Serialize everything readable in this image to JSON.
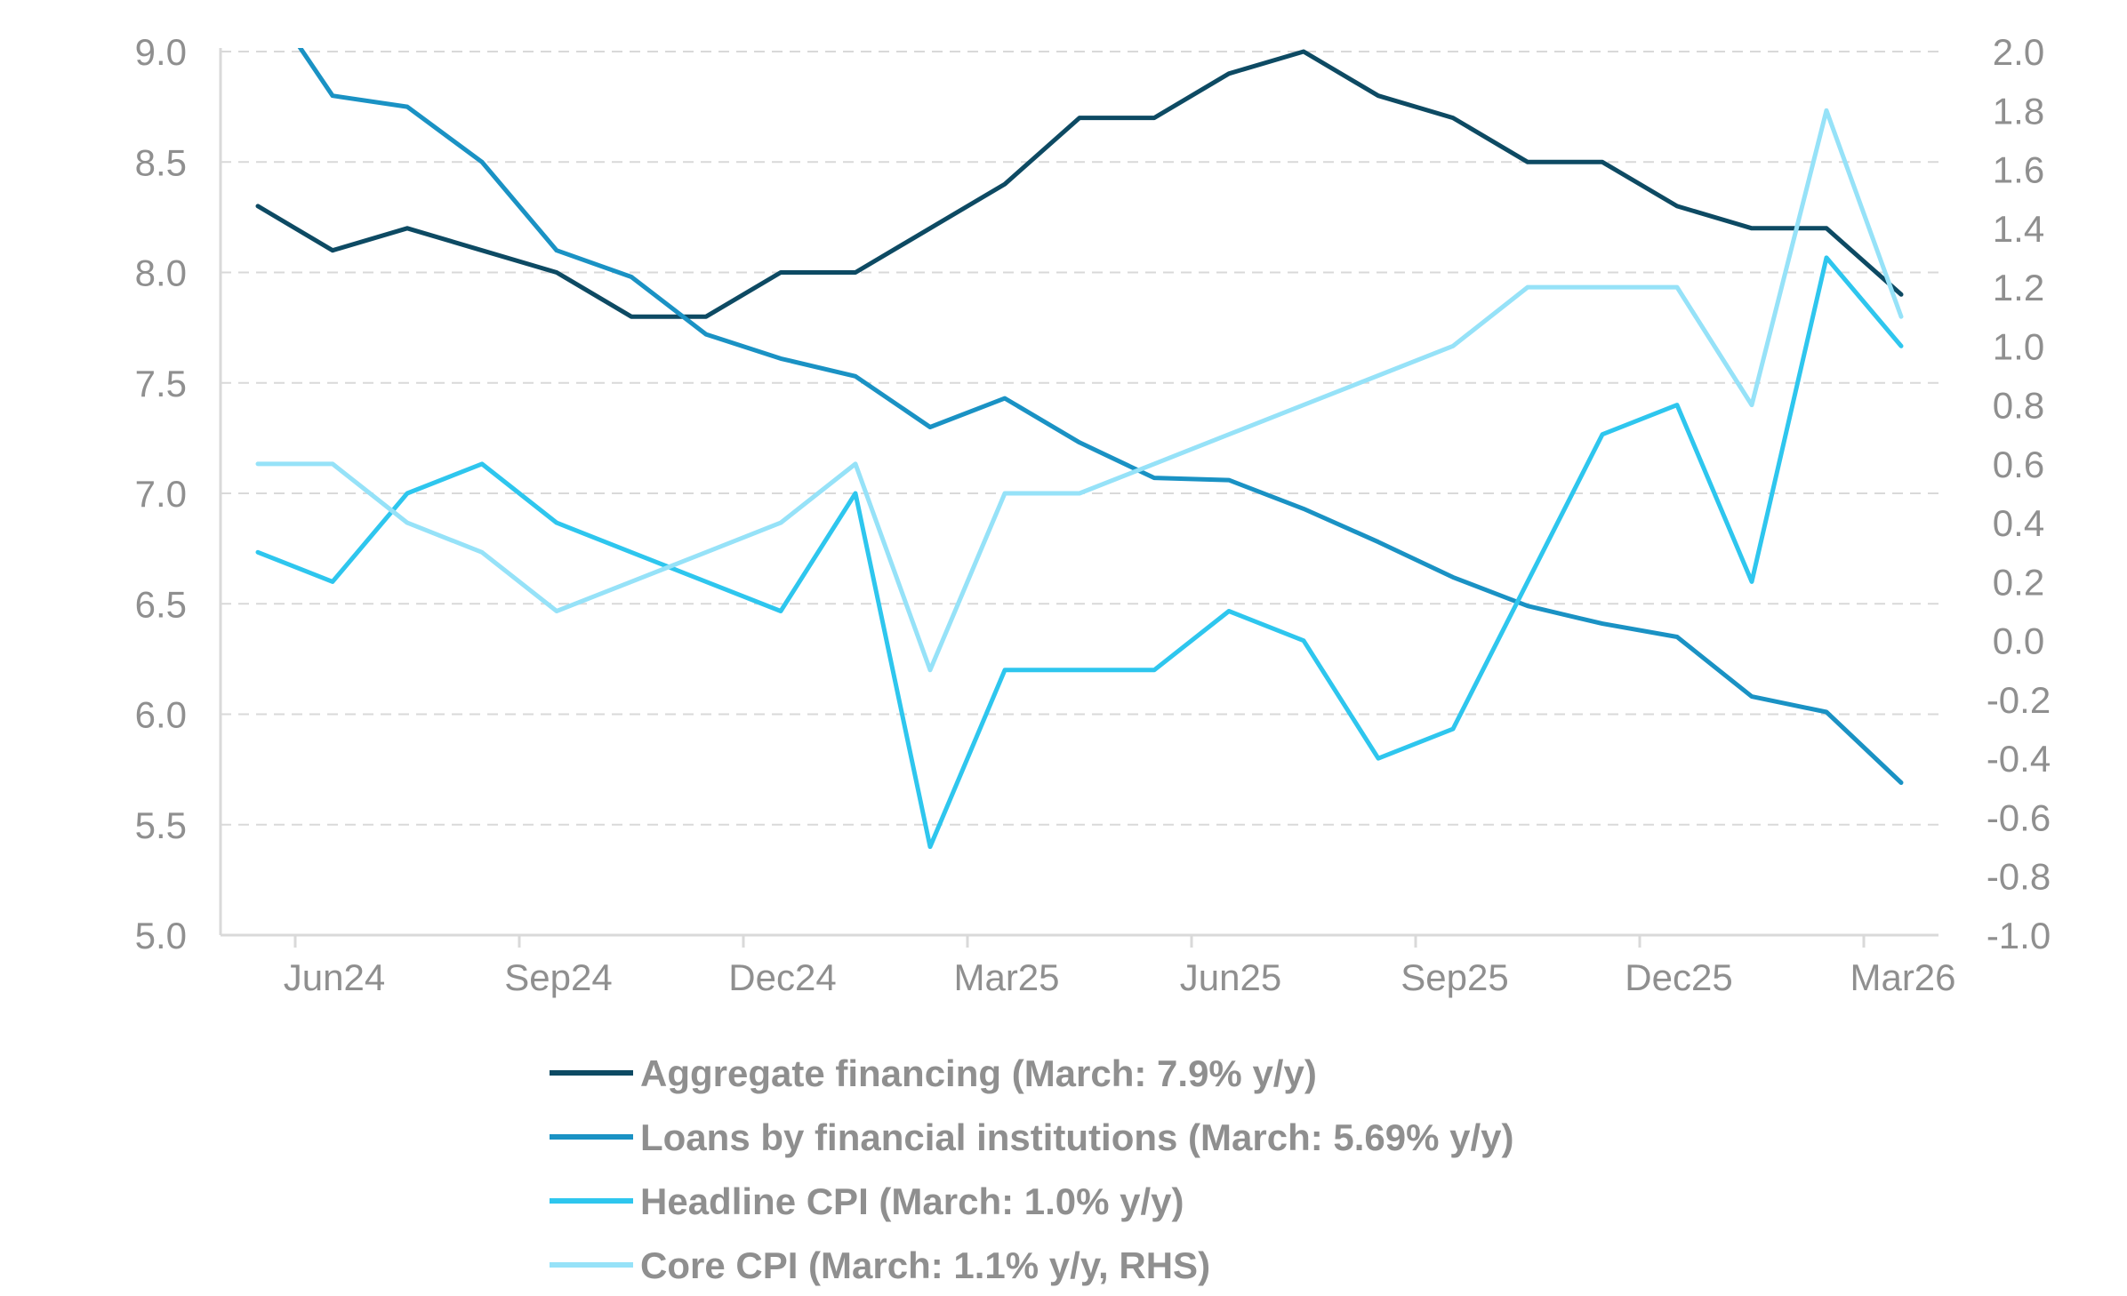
{
  "chart_data": {
    "type": "line",
    "title": "",
    "xlabel": "",
    "ylabel": "",
    "y2label": "",
    "grid": true,
    "legend_position": "bottom",
    "x": [
      "2024-05",
      "2024-06",
      "2024-07",
      "2024-08",
      "2024-09",
      "2024-10",
      "2024-11",
      "2024-12",
      "2025-01",
      "2025-02",
      "2025-03",
      "2025-04",
      "2025-05",
      "2025-06",
      "2025-07",
      "2025-08",
      "2025-09",
      "2025-10",
      "2025-11",
      "2025-12",
      "2026-01",
      "2026-02",
      "2026-03"
    ],
    "xtick_labels": [
      "Jun24",
      "Sep24",
      "Dec24",
      "Mar25",
      "Jun25",
      "Sep25",
      "Dec25",
      "Mar26"
    ],
    "xtick_months": [
      "2024-06",
      "2024-09",
      "2024-12",
      "2025-03",
      "2025-06",
      "2025-09",
      "2025-12",
      "2026-03"
    ],
    "ylim": [
      5.0,
      9.0
    ],
    "y2lim": [
      -1.0,
      2.0
    ],
    "yticks": [
      "5.0",
      "5.5",
      "6.0",
      "6.5",
      "7.0",
      "7.5",
      "8.0",
      "8.5",
      "9.0"
    ],
    "y2ticks": [
      "-1.0",
      "-0.8",
      "-0.6",
      "-0.4",
      "-0.2",
      "0.0",
      "0.2",
      "0.4",
      "0.6",
      "0.8",
      "1.0",
      "1.2",
      "1.4",
      "1.6",
      "1.8",
      "2.0"
    ],
    "series": [
      {
        "name": "Aggregate financing (March: 7.9% y/y)",
        "axis": "left",
        "color": "#0d4a63",
        "values": [
          8.3,
          8.1,
          8.2,
          8.1,
          8.0,
          7.8,
          7.8,
          8.0,
          8.0,
          8.2,
          8.4,
          8.7,
          8.7,
          8.9,
          9.0,
          8.8,
          8.7,
          8.5,
          8.5,
          8.3,
          8.2,
          8.2,
          7.9
        ]
      },
      {
        "name": "Loans by financial institutions (March: 5.69% y/y)",
        "axis": "left",
        "color": "#1a92c4",
        "values": [
          9.3,
          8.8,
          8.75,
          8.5,
          8.1,
          7.98,
          7.72,
          7.61,
          7.53,
          7.3,
          7.43,
          7.23,
          7.07,
          7.06,
          6.93,
          6.78,
          6.62,
          6.49,
          6.41,
          6.35,
          6.08,
          6.01,
          5.69
        ]
      },
      {
        "name": "Headline CPI (March: 1.0% y/y)",
        "axis": "right",
        "color": "#2ec6ee",
        "values": [
          0.3,
          0.2,
          0.5,
          0.6,
          0.4,
          0.3,
          0.2,
          0.1,
          0.5,
          -0.7,
          -0.1,
          -0.1,
          -0.1,
          0.1,
          0.0,
          -0.4,
          -0.3,
          0.2,
          0.7,
          0.8,
          0.2,
          1.3,
          1.0
        ]
      },
      {
        "name": "Core CPI (March: 1.1% y/y, RHS)",
        "axis": "right",
        "color": "#96e2f8",
        "values": [
          0.6,
          0.6,
          0.4,
          0.3,
          0.1,
          0.2,
          0.3,
          0.4,
          0.6,
          -0.1,
          0.5,
          0.5,
          0.6,
          0.7,
          0.8,
          0.9,
          1.0,
          1.2,
          1.2,
          1.2,
          0.8,
          1.8,
          1.1
        ]
      }
    ]
  }
}
